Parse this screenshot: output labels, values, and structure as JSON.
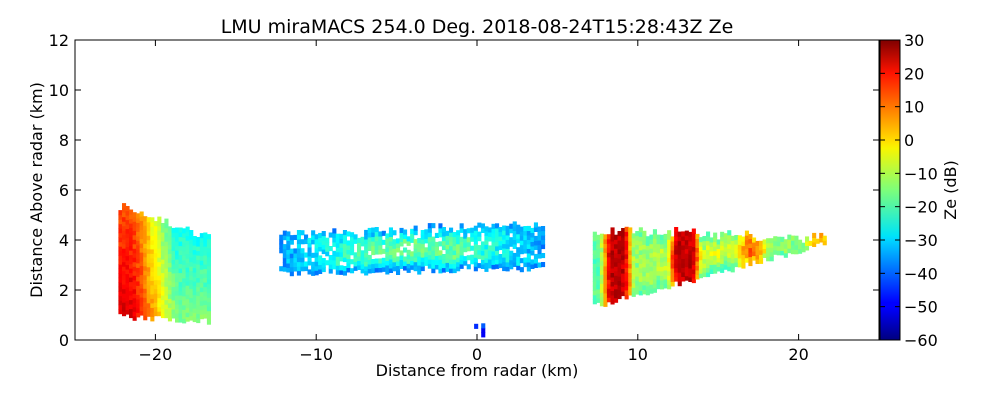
{
  "chart_data": {
    "type": "heatmap",
    "title": "LMU miraMACS 254.0 Deg. 2018-08-24T15:28:43Z  Ze",
    "xlabel": "Distance from radar (km)",
    "ylabel": "Distance Above radar  (km)",
    "xlim": [
      -25,
      25
    ],
    "ylim": [
      0,
      12
    ],
    "xticks": [
      -20,
      -10,
      0,
      10,
      20
    ],
    "xtick_labels": [
      "−20",
      "−10",
      "0",
      "10",
      "20"
    ],
    "yticks": [
      0,
      2,
      4,
      6,
      8,
      10,
      12
    ],
    "ytick_labels": [
      "0",
      "2",
      "4",
      "6",
      "8",
      "10",
      "12"
    ],
    "colorbar": {
      "label": "Ze (dB)",
      "range": [
        -60,
        30
      ],
      "ticks": [
        -60,
        -50,
        -40,
        -30,
        -20,
        -10,
        0,
        10,
        20,
        30
      ],
      "tick_labels": [
        "−60",
        "−50",
        "−40",
        "−30",
        "−20",
        "−10",
        "0",
        "10",
        "20",
        "30"
      ],
      "colormap": "jet"
    },
    "regions": [
      {
        "name": "left-echo",
        "x": [
          -22.3,
          -16.8
        ],
        "y_bottom": [
          0.9,
          0.7
        ],
        "y_top": [
          5.3,
          4.1
        ],
        "ze_core": 22,
        "ze_edge": -15
      },
      {
        "name": "center-cloud",
        "x": [
          -12.3,
          4.2
        ],
        "y_bottom": [
          2.6,
          2.8
        ],
        "y_top": [
          4.2,
          4.5
        ],
        "ze_core": -18,
        "ze_edge": -35
      },
      {
        "name": "right-echo",
        "x": [
          7.2,
          21.5
        ],
        "y_bottom": [
          1.3,
          3.8
        ],
        "y_top": [
          4.3,
          4.0
        ],
        "ze_core": 24,
        "ze_edge": -18
      },
      {
        "name": "ground-clutter",
        "x": [
          -0.4,
          0.4
        ],
        "y_bottom": [
          0.0,
          0.0
        ],
        "y_top": [
          0.6,
          0.6
        ],
        "ze_core": -45,
        "ze_edge": -50
      }
    ]
  }
}
